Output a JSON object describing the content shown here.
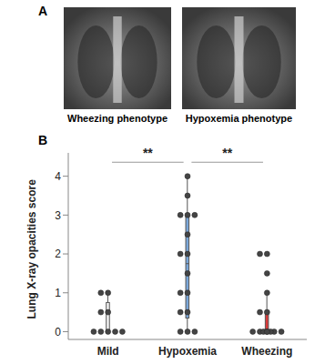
{
  "figure": {
    "panel_labels": [
      "A",
      "B"
    ],
    "image_captions": [
      "Wheezing phenotype",
      "Hypoxemia phenotype"
    ]
  },
  "chart_data": {
    "type": "box",
    "categories": [
      "Mild",
      "Hypoxemia",
      "Wheezing"
    ],
    "colors": [
      "#f2f2f2",
      "#7ba7d9",
      "#d93a3a"
    ],
    "ylabel": "Lung X-ray opacities score",
    "ylim": [
      -0.2,
      4.6
    ],
    "yticks": [
      0,
      1,
      2,
      3,
      4
    ],
    "grid": false,
    "boxes": [
      {
        "q1": 0,
        "median": 0,
        "q3": 0.75,
        "whisker_low": 0,
        "whisker_high": 1
      },
      {
        "q1": 0.35,
        "median": 1.75,
        "q3": 3,
        "whisker_low": 0,
        "whisker_high": 4
      },
      {
        "q1": 0,
        "median": 0,
        "q3": 0.5,
        "whisker_low": 0,
        "whisker_high": 1
      }
    ],
    "points": [
      [
        0,
        0,
        0,
        0,
        0,
        0.5,
        0.5,
        1,
        1
      ],
      [
        4,
        3.5,
        3,
        3,
        3,
        2.5,
        2,
        2,
        1.5,
        1,
        1,
        0.5,
        0.5,
        0,
        0,
        0
      ],
      [
        0,
        0,
        0,
        0,
        0,
        0,
        0,
        0,
        0.5,
        0.5,
        1,
        1.5,
        2,
        2
      ]
    ],
    "annotations": [
      {
        "text": "**",
        "from": "Mild",
        "to": "Hypoxemia"
      },
      {
        "text": "**",
        "from": "Hypoxemia",
        "to": "Wheezing"
      }
    ]
  }
}
